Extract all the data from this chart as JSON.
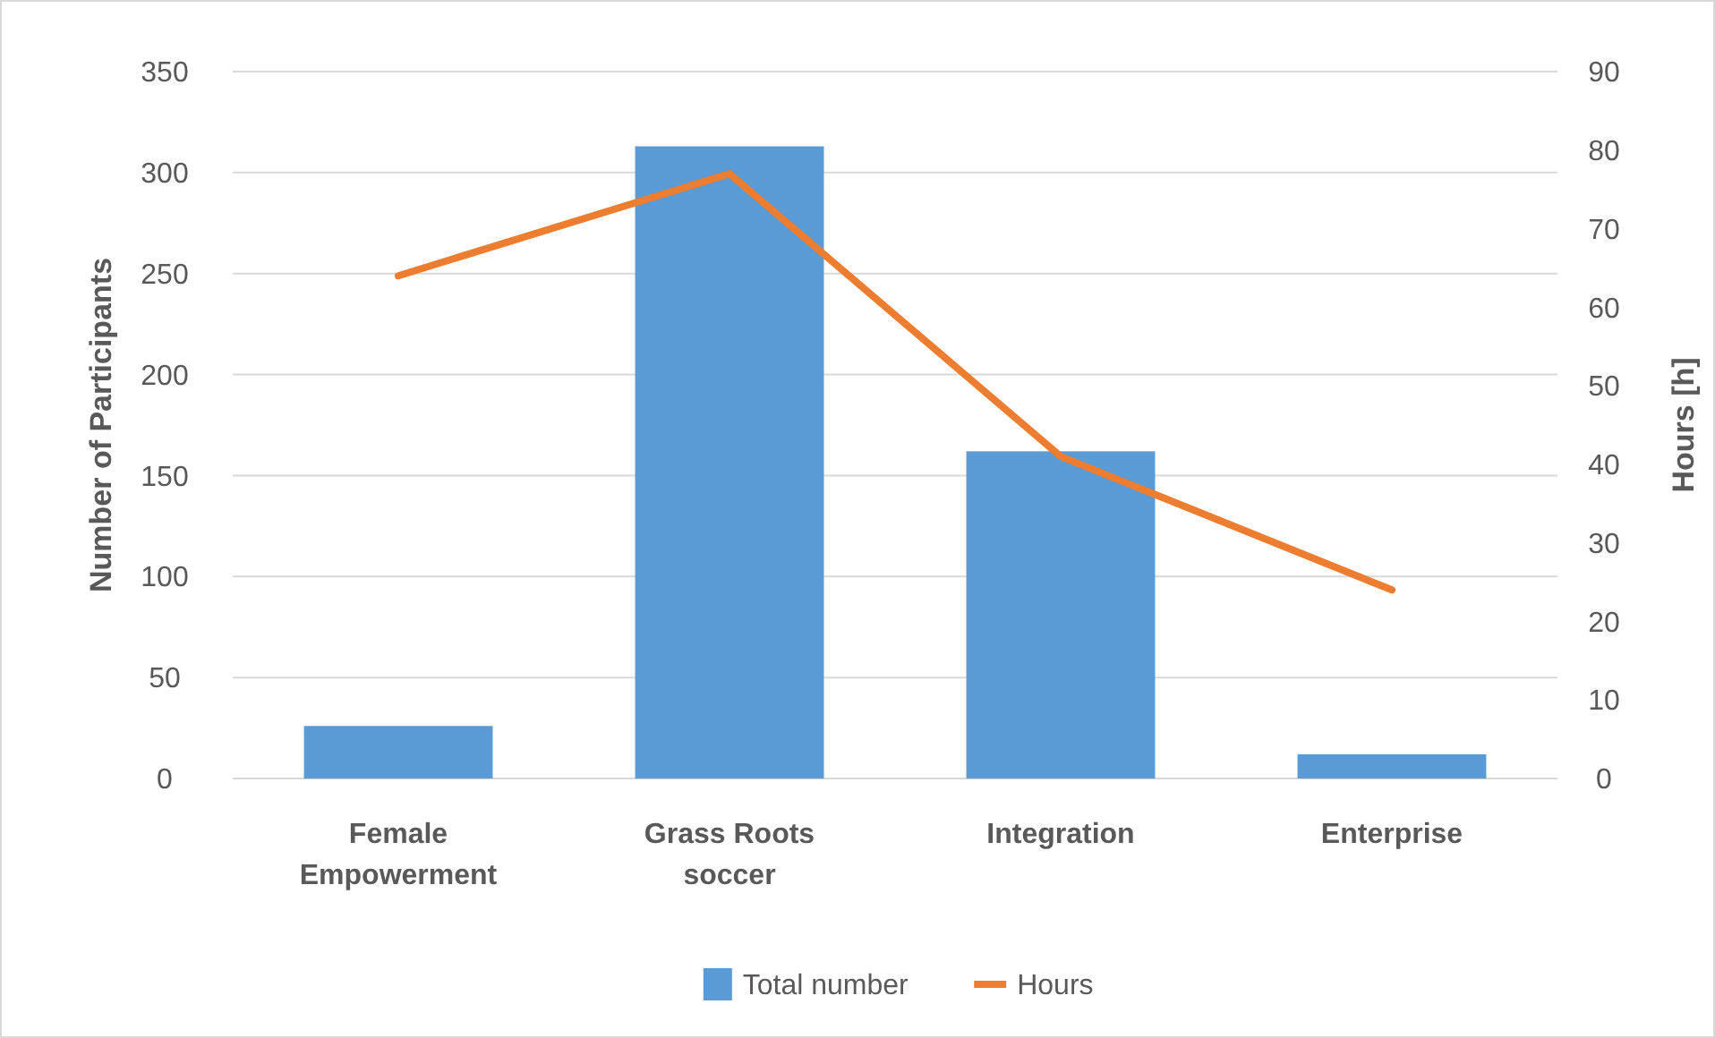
{
  "chart_data": {
    "type": "bar",
    "categories": [
      "Female Empowerment",
      "Grass Roots soccer",
      "Integration",
      "Enterprise"
    ],
    "series": [
      {
        "name": "Total number",
        "color": "#5b9bd5",
        "values": [
          26,
          313,
          162,
          12
        ]
      },
      {
        "name": "Hours",
        "type": "line",
        "axis": "y2",
        "color": "#ed7d31",
        "values": [
          64,
          77,
          41,
          24
        ]
      }
    ],
    "ylabel": "Number of Participants",
    "y2label": "Hours [h]",
    "ylim": [
      0,
      350
    ],
    "yticks": [
      0,
      50,
      100,
      150,
      200,
      250,
      300,
      350
    ],
    "y2lim": [
      0,
      90
    ],
    "y2ticks": [
      0,
      10,
      20,
      30,
      40,
      50,
      60,
      70,
      80,
      90
    ],
    "grid": "y",
    "legend": "bottom",
    "marker": "none",
    "line_style": "solid"
  }
}
